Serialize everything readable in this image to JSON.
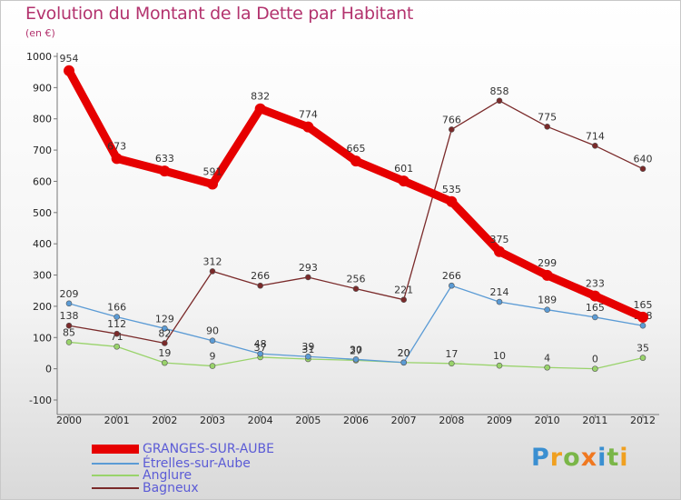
{
  "title": "Evolution du Montant de la Dette par Habitant",
  "subtitle": "(en €)",
  "logo": {
    "text": "Proxiti",
    "letter_colors": [
      "#3a8fd1",
      "#f0a020",
      "#7ab648",
      "#f07820",
      "#3a8fd1",
      "#7ab648",
      "#f0a020"
    ]
  },
  "chart_data": {
    "type": "line",
    "x": [
      2000,
      2001,
      2002,
      2003,
      2004,
      2005,
      2006,
      2007,
      2008,
      2009,
      2010,
      2011,
      2012
    ],
    "ylim": [
      -100,
      1000
    ],
    "yticks": [
      -100,
      0,
      100,
      200,
      300,
      400,
      500,
      600,
      700,
      800,
      900,
      1000
    ],
    "grid": false,
    "legend_position": "bottom-left",
    "series": [
      {
        "name": "GRANGES-SUR-AUBE",
        "color": "#e60000",
        "values": [
          954,
          673,
          633,
          591,
          832,
          774,
          665,
          601,
          535,
          375,
          299,
          233,
          165
        ]
      },
      {
        "name": "Étrelles-sur-Aube",
        "color": "#5b9bd5",
        "values": [
          209,
          166,
          129,
          90,
          48,
          39,
          30,
          20,
          266,
          214,
          189,
          165,
          138
        ]
      },
      {
        "name": "Anglure",
        "color": "#99d36b",
        "values": [
          85,
          71,
          19,
          9,
          37,
          31,
          27,
          20,
          17,
          10,
          4,
          0,
          35
        ]
      },
      {
        "name": "Bagneux",
        "color": "#7a2a2a",
        "values": [
          138,
          112,
          82,
          312,
          266,
          293,
          256,
          221,
          766,
          858,
          775,
          714,
          640
        ]
      }
    ]
  }
}
